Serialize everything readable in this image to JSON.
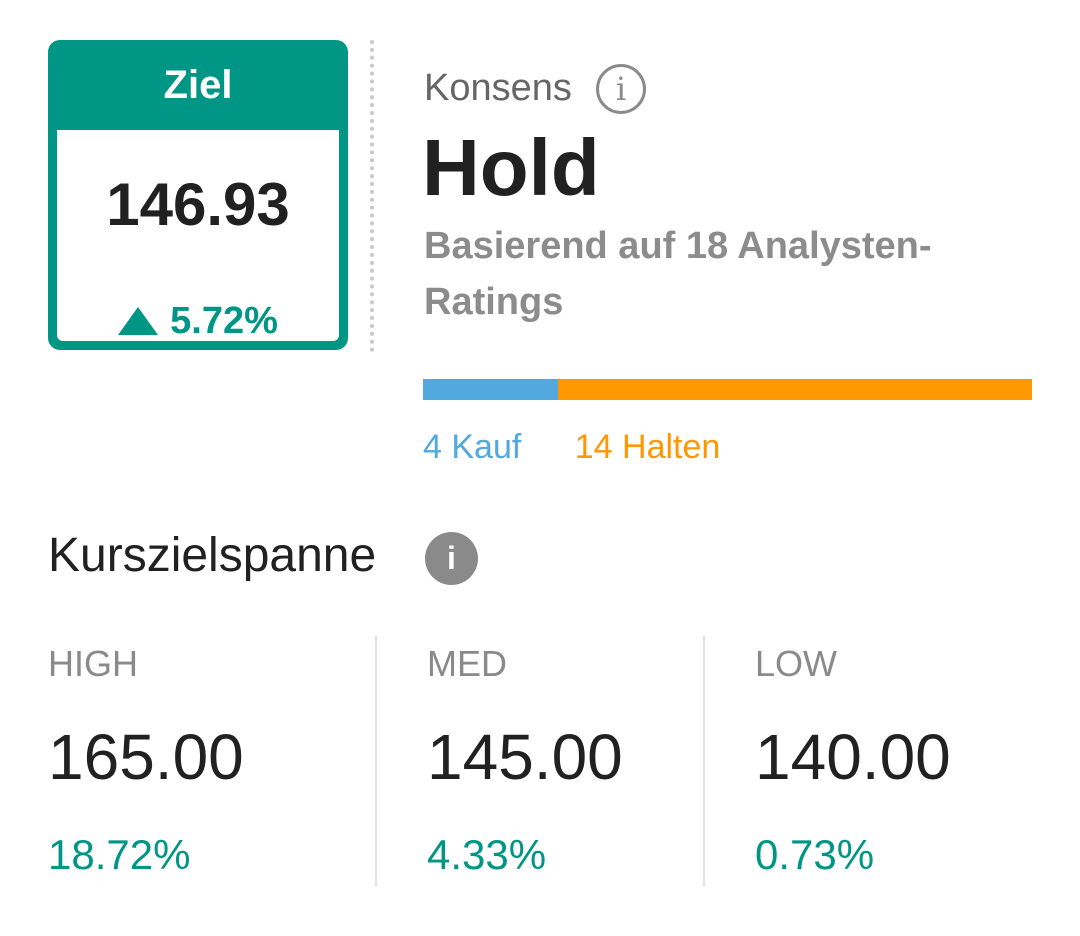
{
  "target": {
    "header": "Ziel",
    "value": "146.93",
    "change": "5.72%",
    "change_direction_icon": "triangle-up-icon"
  },
  "consensus": {
    "label": "Konsens",
    "info_icon": "info-outline-icon",
    "rating": "Hold",
    "basis": "Basierend auf 18 Analysten-Ratings",
    "distribution": [
      {
        "label": "4 Kauf",
        "count": 4,
        "color": "#52a9e0"
      },
      {
        "label": "14 Halten",
        "count": 14,
        "color": "#ff9800"
      }
    ]
  },
  "price_range": {
    "title": "Kurszielspanne",
    "info_icon": "info-filled-icon",
    "columns": [
      {
        "label": "HIGH",
        "value": "165.00",
        "change": "18.72%"
      },
      {
        "label": "MED",
        "value": "145.00",
        "change": "4.33%"
      },
      {
        "label": "LOW",
        "value": "140.00",
        "change": "0.73%"
      }
    ]
  },
  "colors": {
    "accent": "#009685",
    "buy": "#52a9e0",
    "hold": "#ff9800"
  }
}
